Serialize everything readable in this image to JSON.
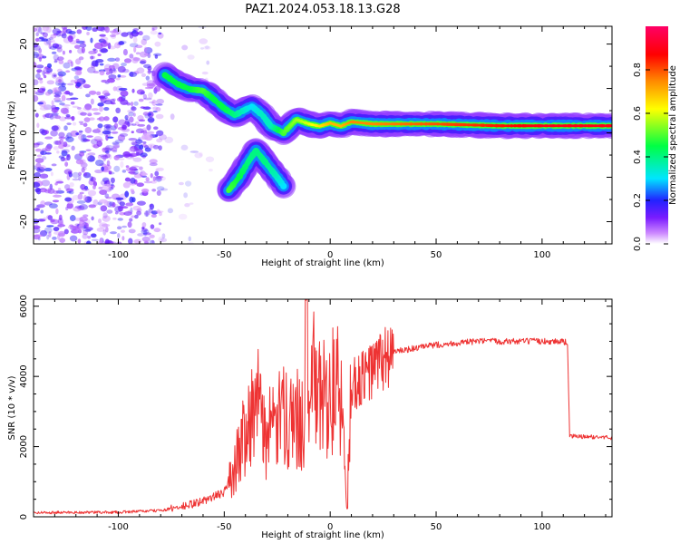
{
  "title": "PAZ1.2024.053.18.13.G28",
  "chart_data": [
    {
      "type": "heatmap",
      "xlabel": "Height of straight line (km)",
      "ylabel": "Frequency (Hz)",
      "xlim": [
        -140,
        133
      ],
      "ylim": [
        -25,
        24
      ],
      "xticks": [
        -100,
        -50,
        0,
        50,
        100
      ],
      "yticks": [
        -20,
        -10,
        0,
        10,
        20
      ],
      "colorbar": {
        "label": "Normalized spectral amplitude",
        "range": [
          0,
          1
        ],
        "ticks": [
          0.0,
          0.2,
          0.4,
          0.6,
          0.8
        ],
        "tick_labels": [
          "0.0",
          "0.2",
          "0.4",
          "0.6",
          "0.8"
        ],
        "colors": [
          "#ffffff",
          "#cc88ff",
          "#7a1cff",
          "#2222ff",
          "#00e5ff",
          "#00ff44",
          "#ffff00",
          "#ff8800",
          "#ff0000",
          "#ff0066"
        ]
      },
      "noise_region": {
        "x": [
          -140,
          -80
        ],
        "freq": [
          -25,
          24
        ],
        "amplitude": [
          0.1,
          0.2
        ]
      },
      "main_signal": {
        "points": [
          {
            "x": -78,
            "freq": 13.0,
            "amp": 0.45
          },
          {
            "x": -72,
            "freq": 11.0,
            "amp": 0.45
          },
          {
            "x": -66,
            "freq": 9.8,
            "amp": 0.45
          },
          {
            "x": -60,
            "freq": 9.5,
            "amp": 0.5
          },
          {
            "x": -56,
            "freq": 8.0,
            "amp": 0.45
          },
          {
            "x": -50,
            "freq": 5.5,
            "amp": 0.45
          },
          {
            "x": -45,
            "freq": 4.0,
            "amp": 0.4
          },
          {
            "x": -37,
            "freq": 6.0,
            "amp": 0.3
          },
          {
            "x": -32,
            "freq": 4.0,
            "amp": 0.35
          },
          {
            "x": -28,
            "freq": 1.5,
            "amp": 0.35
          },
          {
            "x": -22,
            "freq": 0.0,
            "amp": 0.5
          },
          {
            "x": -16,
            "freq": 3.0,
            "amp": 0.55
          },
          {
            "x": -10,
            "freq": 2.0,
            "amp": 0.6
          },
          {
            "x": -5,
            "freq": 1.5,
            "amp": 0.65
          },
          {
            "x": 0,
            "freq": 2.2,
            "amp": 0.7
          },
          {
            "x": 5,
            "freq": 1.5,
            "amp": 0.7
          },
          {
            "x": 10,
            "freq": 2.5,
            "amp": 0.75
          },
          {
            "x": 20,
            "freq": 2.0,
            "amp": 0.75
          },
          {
            "x": 50,
            "freq": 2.0,
            "amp": 0.8
          },
          {
            "x": 80,
            "freq": 1.6,
            "amp": 0.85
          },
          {
            "x": 100,
            "freq": 1.6,
            "amp": 0.9
          },
          {
            "x": 133,
            "freq": 1.6,
            "amp": 0.9
          }
        ]
      },
      "secondary_signal": {
        "points": [
          {
            "x": -48,
            "freq": -13.0,
            "amp": 0.5
          },
          {
            "x": -43,
            "freq": -10.0,
            "amp": 0.45
          },
          {
            "x": -38,
            "freq": -6.0,
            "amp": 0.4
          },
          {
            "x": -35,
            "freq": -4.0,
            "amp": 0.4
          },
          {
            "x": -30,
            "freq": -7.0,
            "amp": 0.4
          },
          {
            "x": -25,
            "freq": -10.0,
            "amp": 0.35
          },
          {
            "x": -22,
            "freq": -12.0,
            "amp": 0.3
          }
        ]
      }
    },
    {
      "type": "line",
      "xlabel": "Height of straight line (km)",
      "ylabel": "SNR (10 * v/v)",
      "xlim": [
        -140,
        133
      ],
      "ylim": [
        0,
        6200
      ],
      "xticks": [
        -100,
        -50,
        0,
        50,
        100
      ],
      "yticks": [
        0,
        2000,
        4000,
        6000
      ],
      "color": "#ee3333",
      "series": [
        {
          "x": [
            -140,
            -100,
            -80,
            -70,
            -60,
            -50,
            -45,
            -40,
            -35,
            -30,
            -25,
            -20,
            -15,
            -11,
            -10,
            -5,
            0,
            5,
            8,
            10,
            15,
            20,
            25,
            30,
            40,
            50,
            60,
            70,
            80,
            90,
            100,
            110,
            112,
            113,
            120,
            133
          ],
          "y": [
            120,
            130,
            180,
            280,
            450,
            700,
            1400,
            2600,
            3300,
            2300,
            2600,
            3000,
            2700,
            3100,
            4200,
            3300,
            3600,
            3500,
            300,
            3800,
            3900,
            4200,
            4500,
            4700,
            4800,
            4900,
            4950,
            5000,
            5000,
            5000,
            5000,
            5000,
            4950,
            2300,
            2280,
            2260
          ]
        }
      ]
    }
  ]
}
